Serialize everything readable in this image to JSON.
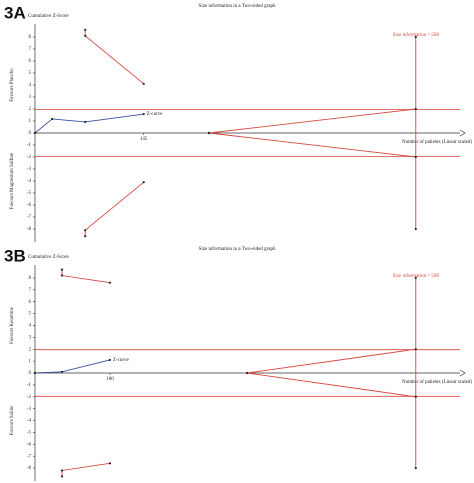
{
  "charts": [
    {
      "type": "line",
      "panel_label": "3A",
      "title": "Size information in a Two-sided graph",
      "y_label": "Cumulative Z-Score",
      "upper_label": "Favours Placebo",
      "lower_label": "Favours Magnesium Sulfate",
      "x_label": "Number of patients (Linear scaled)",
      "xlim": [
        0,
        567
      ],
      "ylim": [
        -8.75,
        8.75
      ],
      "yticks": [
        8,
        7,
        6,
        5,
        4,
        3,
        2,
        1,
        0,
        -1,
        -2,
        -3,
        -4,
        -5,
        -6,
        -7,
        -8
      ],
      "xticks": [
        145
      ],
      "z_curve": {
        "name": "Z-curve",
        "color": "#3a4fa0",
        "x": [
          0,
          23,
          67,
          145
        ],
        "values": [
          0,
          1.17,
          0.92,
          1.58
        ]
      },
      "upper_boundary": {
        "color": "#d9463e",
        "x": [
          67,
          67,
          145
        ],
        "values": [
          8.6,
          8.1,
          4.1
        ]
      },
      "lower_boundary": {
        "color": "#d9463e",
        "x": [
          67,
          67,
          145
        ],
        "values": [
          -8.6,
          -8.1,
          -4.1
        ]
      },
      "upper_futility": {
        "color": "#d9463e",
        "x": [
          232,
          508
        ],
        "values": [
          0,
          2
        ]
      },
      "lower_futility": {
        "color": "#d9463e",
        "x": [
          232,
          508
        ],
        "values": [
          0,
          -2
        ]
      },
      "conventional_boundaries": {
        "color": "#d9463e",
        "values": [
          1.96,
          -1.96
        ]
      },
      "ris": {
        "label": "Size information = 508",
        "color": "#d9463e",
        "x": 508,
        "values": [
          8,
          -8
        ]
      }
    },
    {
      "type": "line",
      "panel_label": "3B",
      "title": "Size information in a Two-sided graph",
      "y_label": "Cumulative Z-Score",
      "upper_label": "Favours Ketamine",
      "lower_label": "Favours Saline",
      "x_label": "Number of patients (Linear scaled)",
      "xlim": [
        0,
        567
      ],
      "ylim": [
        -8.75,
        8.75
      ],
      "yticks": [
        8,
        7,
        6,
        5,
        4,
        3,
        2,
        1,
        0,
        -1,
        -2,
        -3,
        -4,
        -5,
        -6,
        -7,
        -8
      ],
      "xticks": [
        100
      ],
      "z_curve": {
        "name": "Z-curve",
        "color": "#3a4fa0",
        "x": [
          0,
          36,
          100
        ],
        "values": [
          0,
          0.1,
          1.1
        ]
      },
      "upper_boundary": {
        "color": "#d9463e",
        "x": [
          36,
          36,
          100
        ],
        "values": [
          8.7,
          8.2,
          7.6
        ]
      },
      "lower_boundary": {
        "color": "#d9463e",
        "x": [
          36,
          36,
          100
        ],
        "values": [
          -8.7,
          -8.2,
          -7.6
        ]
      },
      "upper_futility": {
        "color": "#d9463e",
        "x": [
          283,
          508
        ],
        "values": [
          0,
          2
        ]
      },
      "lower_futility": {
        "color": "#d9463e",
        "x": [
          283,
          508
        ],
        "values": [
          0,
          -2
        ]
      },
      "conventional_boundaries": {
        "color": "#d9463e",
        "values": [
          1.96,
          -1.96
        ]
      },
      "ris": {
        "label": "Size information = 508",
        "color": "#d9463e",
        "x": 508,
        "values": [
          8,
          -8
        ]
      }
    }
  ]
}
